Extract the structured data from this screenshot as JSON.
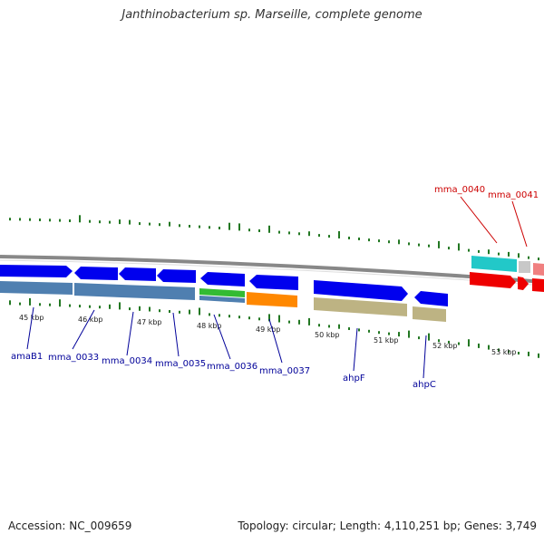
{
  "title": "Janthinobacterium sp. Marseille, complete genome",
  "accession": "Accession: NC_009659",
  "summary": "Topology: circular; Length: 4,110,251 bp; Genes: 3,749",
  "colors": {
    "forward_gene": "#0000ee",
    "reverse_gene": "#0000ee",
    "cds_steel": "#4f7fb0",
    "cds_khaki": "#bdb383",
    "cds_green": "#33bb33",
    "cds_orange": "#ff8800",
    "cds_cyan": "#22c8c8",
    "cds_red": "#ee0000",
    "cds_pink": "#f08080",
    "gc_skew": "#227722",
    "backbone": "#888888",
    "label_blue": "#000099",
    "label_red": "#cc0000"
  },
  "kbp_labels": [
    "45 kbp",
    "46 kbp",
    "47 kbp",
    "48 kbp",
    "49 kbp",
    "50 kbp",
    "51 kbp",
    "52 kbp",
    "53 kbp"
  ],
  "gene_labels": [
    {
      "text": "amaB1",
      "color": "blue"
    },
    {
      "text": "mma_0033",
      "color": "blue"
    },
    {
      "text": "mma_0034",
      "color": "blue"
    },
    {
      "text": "mma_0035",
      "color": "blue"
    },
    {
      "text": "mma_0036",
      "color": "blue"
    },
    {
      "text": "mma_0037",
      "color": "blue"
    },
    {
      "text": "ahpF",
      "color": "blue"
    },
    {
      "text": "ahpC",
      "color": "blue"
    },
    {
      "text": "mma_0040",
      "color": "red"
    },
    {
      "text": "mma_0041",
      "color": "red"
    }
  ]
}
